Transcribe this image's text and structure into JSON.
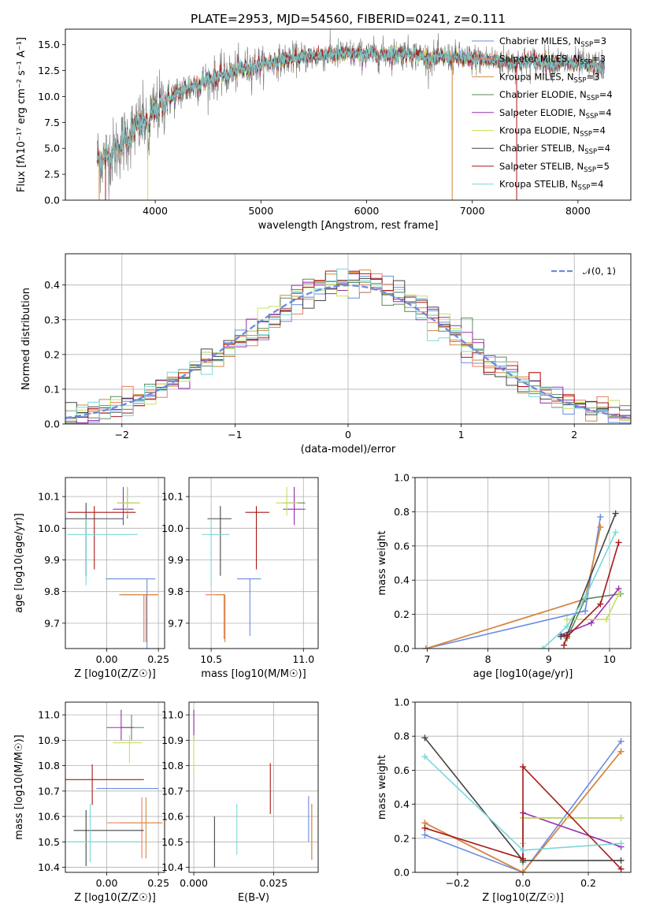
{
  "figure": {
    "title": "PLATE=2953, MJD=54560, FIBERID=0241, z=0.111"
  },
  "models": [
    {
      "name": "Chabrier MILES",
      "n_ssp": "3",
      "color": "#6a8be0"
    },
    {
      "name": "Salpeter MILES",
      "n_ssp": "3",
      "color": "#e87e5c"
    },
    {
      "name": "Kroupa MILES",
      "n_ssp": "3",
      "color": "#d2883e"
    },
    {
      "name": "Chabrier ELODIE",
      "n_ssp": "4",
      "color": "#5a8a5a"
    },
    {
      "name": "Salpeter ELODIE",
      "n_ssp": "4",
      "color": "#9b2fb3"
    },
    {
      "name": "Kroupa ELODIE",
      "n_ssp": "4",
      "color": "#c8e060"
    },
    {
      "name": "Chabrier STELIB",
      "n_ssp": "4",
      "color": "#454545"
    },
    {
      "name": "Salpeter STELIB",
      "n_ssp": "5",
      "color": "#a81818"
    },
    {
      "name": "Kroupa STELIB",
      "n_ssp": "4",
      "color": "#7ad8d8"
    }
  ],
  "chart_data": [
    {
      "type": "line",
      "id": "spectrum",
      "title": "PLATE=2953, MJD=54560, FIBERID=0241, z=0.111",
      "xlabel": "wavelength [Angstrom, rest frame]",
      "ylabel": "Flux [fλ10⁻¹⁷ erg cm⁻² s⁻¹ A⁻¹]",
      "xlim": [
        3150,
        8500
      ],
      "ylim": [
        0,
        16.5
      ],
      "xticks": [
        4000,
        5000,
        6000,
        7000,
        8000
      ],
      "yticks": [
        0.0,
        2.5,
        5.0,
        7.5,
        10.0,
        12.5,
        15.0
      ],
      "legend": "right",
      "grid": false,
      "observed_continuum": {
        "x": [
          3450,
          3500,
          3600,
          3700,
          3800,
          3900,
          4000,
          4100,
          4200,
          4300,
          4400,
          4500,
          4700,
          4900,
          5000,
          5200,
          5400,
          5600,
          5800,
          6000,
          6200,
          6400,
          6600,
          6800,
          7000,
          7200,
          7400,
          7600,
          7800,
          8000,
          8250
        ],
        "y": [
          4.2,
          4.0,
          4.6,
          5.7,
          6.8,
          7.6,
          8.6,
          9.6,
          10.2,
          10.8,
          11.2,
          11.6,
          12.2,
          12.9,
          13.1,
          13.5,
          13.8,
          14.0,
          14.1,
          14.0,
          14.1,
          14.2,
          13.7,
          13.8,
          13.6,
          13.5,
          13.3,
          13.4,
          13.3,
          13.1,
          12.8
        ]
      }
    },
    {
      "type": "line",
      "id": "residuals",
      "xlabel": "(data-model)/error",
      "ylabel": "Normed distribution",
      "xlim": [
        -2.5,
        2.5
      ],
      "ylim": [
        0,
        0.49
      ],
      "xticks": [
        -2,
        -1,
        0,
        1,
        2
      ],
      "yticks": [
        0.0,
        0.1,
        0.2,
        0.3,
        0.4
      ],
      "grid": true,
      "legend_label": "𝒩(0, 1)",
      "reference_curve": {
        "name": "N(0,1)",
        "mean": 0,
        "sigma": 1,
        "color": "#6a8be0"
      },
      "histogram_bin_width": 0.1
    },
    {
      "type": "scatter",
      "id": "age_vs_Z",
      "xlabel": "Z [log10(Z/Z☉)]",
      "ylabel": "age  [log10(age/yr)]",
      "xlim": [
        -0.2,
        0.28
      ],
      "ylim": [
        9.62,
        10.16
      ],
      "xticks": [
        0.0,
        0.25
      ],
      "yticks": [
        9.7,
        9.8,
        9.9,
        10.0,
        10.1
      ],
      "grid": true,
      "points": [
        {
          "x": 0.195,
          "y": 9.84,
          "xerr": [
            0.2,
            0.04
          ],
          "yerr": [
            0.22,
            0.0
          ]
        },
        {
          "x": 0.19,
          "y": 9.79,
          "xerr": [
            0.12,
            0.06
          ],
          "yerr": [
            0.15,
            0.0
          ]
        },
        {
          "x": 0.18,
          "y": 9.79,
          "xerr": [
            0.12,
            0.07
          ],
          "yerr": [
            0.15,
            0.0
          ]
        },
        {
          "x": 0.1,
          "y": 10.08,
          "xerr": [
            0.05,
            0.06
          ],
          "yerr": [
            0.05,
            0.05
          ]
        },
        {
          "x": 0.08,
          "y": 10.06,
          "xerr": [
            0.05,
            0.05
          ],
          "yerr": [
            0.05,
            0.07
          ]
        },
        {
          "x": 0.1,
          "y": 10.08,
          "xerr": [
            0.05,
            0.06
          ],
          "yerr": [
            0.04,
            0.05
          ]
        },
        {
          "x": -0.1,
          "y": 10.03,
          "xerr": [
            0.1,
            0.18
          ],
          "yerr": [
            0.18,
            0.05
          ]
        },
        {
          "x": -0.06,
          "y": 10.05,
          "xerr": [
            0.13,
            0.2
          ],
          "yerr": [
            0.18,
            0.02
          ]
        },
        {
          "x": -0.1,
          "y": 9.98,
          "xerr": [
            0.09,
            0.25
          ],
          "yerr": [
            0.16,
            0.05
          ]
        }
      ]
    },
    {
      "type": "scatter",
      "id": "age_vs_mass",
      "xlabel": "mass [log10(M/M☉)]",
      "ylabel": "",
      "xlim": [
        10.38,
        11.08
      ],
      "ylim": [
        9.62,
        10.16
      ],
      "xticks": [
        10.5,
        11.0
      ],
      "yticks": [
        9.7,
        9.8,
        9.9,
        10.0,
        10.1
      ],
      "grid": true,
      "points": [
        {
          "x": 10.71,
          "y": 9.84,
          "xerr": [
            0.07,
            0.06
          ],
          "yerr": [
            0.18,
            0.0
          ]
        },
        {
          "x": 10.57,
          "y": 9.79,
          "xerr": [
            0.1,
            0.0
          ],
          "yerr": [
            0.14,
            0.0
          ]
        },
        {
          "x": 10.575,
          "y": 9.79,
          "xerr": [
            0.05,
            0.0
          ],
          "yerr": [
            0.15,
            0.0
          ]
        },
        {
          "x": 10.95,
          "y": 10.08,
          "xerr": [
            0.06,
            0.06
          ],
          "yerr": [
            0.05,
            0.05
          ]
        },
        {
          "x": 10.95,
          "y": 10.06,
          "xerr": [
            0.06,
            0.06
          ],
          "yerr": [
            0.05,
            0.07
          ]
        },
        {
          "x": 10.91,
          "y": 10.08,
          "xerr": [
            0.06,
            0.06
          ],
          "yerr": [
            0.04,
            0.05
          ]
        },
        {
          "x": 10.55,
          "y": 10.03,
          "xerr": [
            0.07,
            0.06
          ],
          "yerr": [
            0.18,
            0.04
          ]
        },
        {
          "x": 10.745,
          "y": 10.05,
          "xerr": [
            0.06,
            0.07
          ],
          "yerr": [
            0.18,
            0.02
          ]
        },
        {
          "x": 10.5,
          "y": 9.98,
          "xerr": [
            0.05,
            0.1
          ],
          "yerr": [
            0.16,
            0.05
          ]
        }
      ]
    },
    {
      "type": "line",
      "id": "massweight_vs_age",
      "xlabel": "age  [log10(age/yr)]",
      "ylabel": "mass weight",
      "xlim": [
        6.8,
        10.35
      ],
      "ylim": [
        0,
        1.0
      ],
      "xticks": [
        7,
        8,
        9,
        10
      ],
      "yticks": [
        0.0,
        0.2,
        0.4,
        0.6,
        0.8,
        1.0
      ],
      "grid": true,
      "series": [
        {
          "x": [
            6.98,
            9.6,
            9.85
          ],
          "y": [
            0.0,
            0.22,
            0.77
          ]
        },
        {
          "x": [
            6.98,
            9.6,
            9.85
          ],
          "y": [
            0.0,
            0.29,
            0.71
          ]
        },
        {
          "x": [
            6.98,
            9.6,
            9.85
          ],
          "y": [
            0.0,
            0.29,
            0.71
          ]
        },
        {
          "x": [
            9.3,
            9.6,
            10.18
          ],
          "y": [
            0.06,
            0.29,
            0.32
          ]
        },
        {
          "x": [
            9.2,
            9.7,
            10.15
          ],
          "y": [
            0.08,
            0.15,
            0.35
          ]
        },
        {
          "x": [
            9.3,
            9.95,
            10.15
          ],
          "y": [
            0.17,
            0.17,
            0.32
          ]
        },
        {
          "x": [
            9.2,
            9.3,
            10.1
          ],
          "y": [
            0.07,
            0.08,
            0.79
          ]
        },
        {
          "x": [
            9.25,
            9.3,
            9.85,
            10.15
          ],
          "y": [
            0.02,
            0.07,
            0.26,
            0.62
          ]
        },
        {
          "x": [
            8.9,
            9.3,
            9.6,
            10.1
          ],
          "y": [
            0.0,
            0.13,
            0.3,
            0.68
          ]
        }
      ]
    },
    {
      "type": "scatter",
      "id": "mass_vs_Z",
      "xlabel": "Z [log10(Z/Z☉)]",
      "ylabel": "mass [log10(M/M☉)]",
      "xlim": [
        -0.2,
        0.28
      ],
      "ylim": [
        10.38,
        11.05
      ],
      "xticks": [
        0.0,
        0.25
      ],
      "yticks": [
        10.4,
        10.5,
        10.6,
        10.7,
        10.8,
        10.9,
        11.0
      ],
      "grid": true,
      "points": [
        {
          "x": 0.15,
          "y": 10.71,
          "xerr": [
            0.2,
            0.1
          ],
          "yerr": [
            0.0,
            0.0
          ]
        },
        {
          "x": 0.17,
          "y": 10.575,
          "xerr": [
            0.17,
            0.1
          ],
          "yerr": [
            0.14,
            0.1
          ]
        },
        {
          "x": 0.19,
          "y": 10.575,
          "xerr": [
            0.13,
            0.08
          ],
          "yerr": [
            0.14,
            0.1
          ]
        },
        {
          "x": 0.12,
          "y": 10.95,
          "xerr": [
            0.05,
            0.06
          ],
          "yerr": [
            0.05,
            0.05
          ]
        },
        {
          "x": 0.07,
          "y": 10.95,
          "xerr": [
            0.07,
            0.06
          ],
          "yerr": [
            0.05,
            0.07
          ]
        },
        {
          "x": 0.11,
          "y": 10.89,
          "xerr": [
            0.08,
            0.06
          ],
          "yerr": [
            0.08,
            0.03
          ]
        },
        {
          "x": -0.1,
          "y": 10.545,
          "xerr": [
            0.06,
            0.28
          ],
          "yerr": [
            0.14,
            0.08
          ]
        },
        {
          "x": -0.07,
          "y": 10.745,
          "xerr": [
            0.15,
            0.25
          ],
          "yerr": [
            0.1,
            0.06
          ]
        },
        {
          "x": -0.08,
          "y": 10.5,
          "xerr": [
            0.11,
            0.24
          ],
          "yerr": [
            0.08,
            0.15
          ]
        }
      ]
    },
    {
      "type": "scatter",
      "id": "mass_vs_EBV",
      "xlabel": "E(B-V)",
      "ylabel": "",
      "xlim": [
        -0.0015,
        0.039
      ],
      "ylim": [
        10.38,
        11.05
      ],
      "xticks": [
        0.0,
        0.025
      ],
      "yticks": [
        10.4,
        10.5,
        10.6,
        10.7,
        10.8,
        10.9,
        11.0
      ],
      "grid": true,
      "points": [
        {
          "x": 0.036,
          "y": 10.6,
          "xerr": [
            0,
            0
          ],
          "yerr": [
            0.1,
            0.08
          ]
        },
        {
          "x": 0.037,
          "y": 10.55,
          "xerr": [
            0,
            0
          ],
          "yerr": [
            0.12,
            0.1
          ]
        },
        {
          "x": 0.037,
          "y": 10.53,
          "xerr": [
            0,
            0
          ],
          "yerr": [
            0.1,
            0.12
          ]
        },
        {
          "x": 0.0,
          "y": 10.95,
          "xerr": [
            0,
            0
          ],
          "yerr": [
            0.05,
            0.07
          ]
        },
        {
          "x": 0.0,
          "y": 10.95,
          "xerr": [
            0,
            0
          ],
          "yerr": [
            0.05,
            0.07
          ]
        },
        {
          "x": 0.0,
          "y": 10.86,
          "xerr": [
            0,
            0
          ],
          "yerr": [
            0.08,
            0.06
          ]
        },
        {
          "x": 0.0065,
          "y": 10.5,
          "xerr": [
            0,
            0
          ],
          "yerr": [
            0.1,
            0.1
          ]
        },
        {
          "x": 0.024,
          "y": 10.71,
          "xerr": [
            0,
            0
          ],
          "yerr": [
            0.1,
            0.1
          ]
        },
        {
          "x": 0.0135,
          "y": 10.55,
          "xerr": [
            0,
            0
          ],
          "yerr": [
            0.1,
            0.1
          ]
        }
      ]
    },
    {
      "type": "line",
      "id": "massweight_vs_Z",
      "xlabel": "Z [log10(Z/Z☉)]",
      "ylabel": "mass weight",
      "xlim": [
        -0.33,
        0.33
      ],
      "ylim": [
        0,
        1.0
      ],
      "xticks": [
        -0.2,
        0.0,
        0.2
      ],
      "yticks": [
        0.0,
        0.2,
        0.4,
        0.6,
        0.8,
        1.0
      ],
      "grid": true,
      "series": [
        {
          "x": [
            -0.3,
            0.0,
            0.3
          ],
          "y": [
            0.22,
            0.0,
            0.77
          ]
        },
        {
          "x": [
            -0.3,
            0.0,
            0.3
          ],
          "y": [
            0.29,
            0.0,
            0.71
          ]
        },
        {
          "x": [
            -0.3,
            0.0,
            0.3
          ],
          "y": [
            0.29,
            0.0,
            0.71
          ]
        },
        {
          "x": [
            0.0,
            0.0,
            0.3
          ],
          "y": [
            0.06,
            0.32,
            0.32
          ]
        },
        {
          "x": [
            0.0,
            0.0,
            0.3
          ],
          "y": [
            0.08,
            0.35,
            0.15
          ]
        },
        {
          "x": [
            0.0,
            0.0,
            0.3
          ],
          "y": [
            0.17,
            0.32,
            0.32
          ]
        },
        {
          "x": [
            -0.3,
            0.0,
            0.3
          ],
          "y": [
            0.79,
            0.07,
            0.07
          ]
        },
        {
          "x": [
            -0.3,
            0.0,
            0.0,
            0.3
          ],
          "y": [
            0.26,
            0.08,
            0.62,
            0.02
          ]
        },
        {
          "x": [
            -0.3,
            0.0,
            0.3
          ],
          "y": [
            0.68,
            0.13,
            0.17
          ]
        }
      ]
    }
  ]
}
